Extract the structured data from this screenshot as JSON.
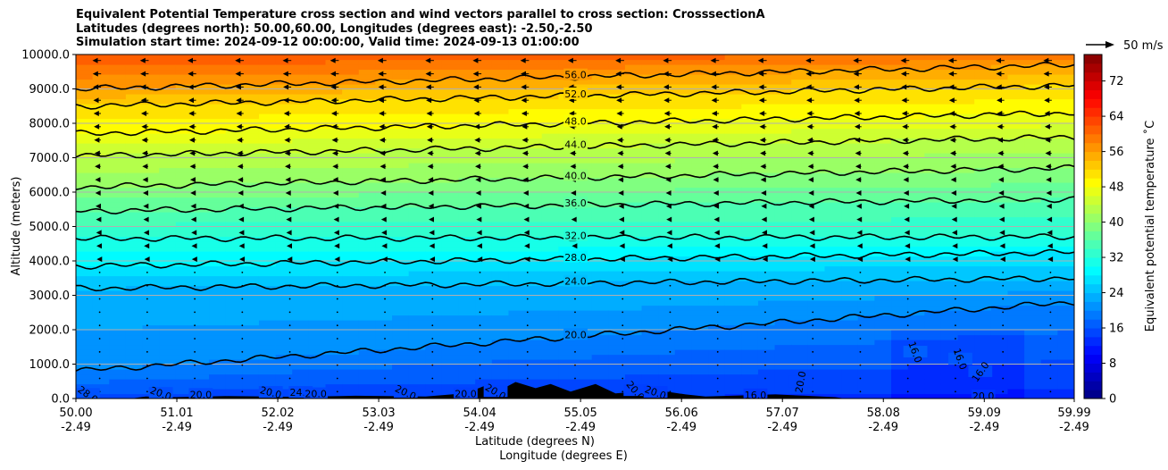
{
  "title_lines": [
    "Equivalent Potential Temperature cross section and wind vectors parallel to cross section: CrosssectionA",
    "Latitudes (degrees north): 50.00,60.00, Longitudes (degrees east): -2.50,-2.50",
    "Simulation start time: 2024-09-12 00:00:00, Valid time: 2024-09-13 01:00:00"
  ],
  "chart_data": {
    "type": "heatmap",
    "subtype": "filled contour cross-section with contour lines and wind vectors",
    "ylabel": "Altitude (meters)",
    "xlabel_line1": "Latitude (degrees N)",
    "xlabel_line2": "Longitude (degrees E)",
    "ylim": [
      0,
      10000
    ],
    "yticks": [
      "0.0",
      "1000.0",
      "2000.0",
      "3000.0",
      "4000.0",
      "5000.0",
      "6000.0",
      "7000.0",
      "8000.0",
      "9000.0",
      "10000.0"
    ],
    "xlim": [
      50.0,
      59.99
    ],
    "xticks_lat": [
      "50.00",
      "51.01",
      "52.02",
      "53.03",
      "54.04",
      "55.05",
      "56.06",
      "57.07",
      "58.08",
      "59.09",
      "59.99"
    ],
    "xticks_lon": [
      "-2.49",
      "-2.49",
      "-2.49",
      "-2.49",
      "-2.49",
      "-2.49",
      "-2.49",
      "-2.49",
      "-2.49",
      "-2.49",
      "-2.49"
    ],
    "grid": "horizontal lines at y ticks",
    "colorbar": {
      "label": "Equivalent potential temperature ˚C",
      "range": [
        0,
        78
      ],
      "ticks": [
        "0",
        "8",
        "16",
        "24",
        "32",
        "40",
        "48",
        "56",
        "64",
        "72"
      ],
      "colormap": "jet"
    },
    "wind_key": {
      "label": "50 m/s",
      "speed": 50
    },
    "contours": [
      {
        "level": 20,
        "label": "20.0",
        "height_west": 800,
        "height_east": 2800
      },
      {
        "level": 24,
        "label": "24.0",
        "height_west": 3200,
        "height_east": 3500
      },
      {
        "level": 28,
        "label": "28.0",
        "height_west": 3850,
        "height_east": 4250
      },
      {
        "level": 32,
        "label": "32.0",
        "height_west": 4650,
        "height_east": 4700
      },
      {
        "level": 36,
        "label": "36.0",
        "height_west": 5450,
        "height_east": 5800
      },
      {
        "level": 40,
        "label": "40.0",
        "height_west": 6150,
        "height_east": 6700
      },
      {
        "level": 44,
        "label": "44.0",
        "height_west": 7050,
        "height_east": 7600
      },
      {
        "level": 48,
        "label": "48.0",
        "height_west": 7700,
        "height_east": 8300
      },
      {
        "level": 52,
        "label": "52.0",
        "height_west": 8500,
        "height_east": 9100
      },
      {
        "level": 56,
        "label": "56.0",
        "height_west": 9000,
        "height_east": 9700
      }
    ],
    "contour_labels_low": [
      "28.0",
      "20.0",
      "20.0",
      "20.0",
      "24.0",
      "20.0",
      "20.0",
      "20.0",
      "20.0",
      "20.0",
      "20.0",
      "16.0",
      "16.0",
      "16.0",
      "16.0",
      "20.0",
      "20.0"
    ],
    "terrain": "black orography near surface, peaks up to about 500 m between 54.0 and 55.3 N"
  },
  "colors": {
    "contour_line": "#000000",
    "grid": "#b0b0b0",
    "terrain": "#000000"
  }
}
